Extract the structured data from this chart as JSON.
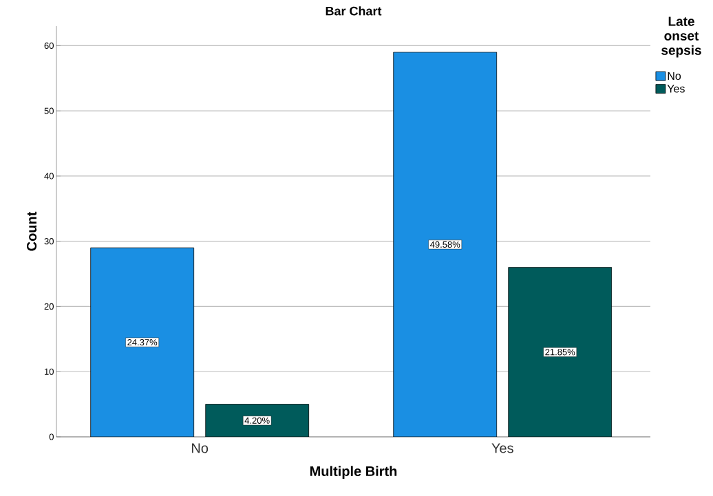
{
  "chart_data": {
    "type": "bar",
    "title": "Bar Chart",
    "xlabel": "Multiple Birth",
    "ylabel": "Count",
    "legend_title": "Late onset sepsis",
    "categories": [
      "No",
      "Yes"
    ],
    "series": [
      {
        "name": "No",
        "color": "#1a8fe3",
        "values": [
          29,
          59
        ]
      },
      {
        "name": "Yes",
        "color": "#005b5b",
        "values": [
          5,
          26
        ]
      }
    ],
    "annotations": [
      "24.37%",
      "49.58%",
      "4.20%",
      "21.85%"
    ],
    "ylim": [
      0,
      63
    ],
    "yticks": [
      0,
      10,
      20,
      30,
      40,
      50,
      60
    ],
    "grid": "y",
    "legend": "top right"
  }
}
